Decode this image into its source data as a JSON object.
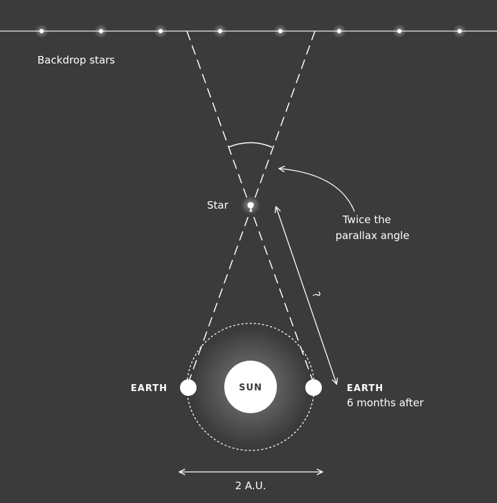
{
  "labels": {
    "backdrop": "Backdrop stars",
    "star": "Star",
    "angle_line1": "Twice the",
    "angle_line2": "parallax angle",
    "distance": "?",
    "earth_left": "EARTH",
    "sun": "SUN",
    "earth_right": "EARTH",
    "earth_right_note": "6 months after",
    "baseline": "2 A.U."
  }
}
